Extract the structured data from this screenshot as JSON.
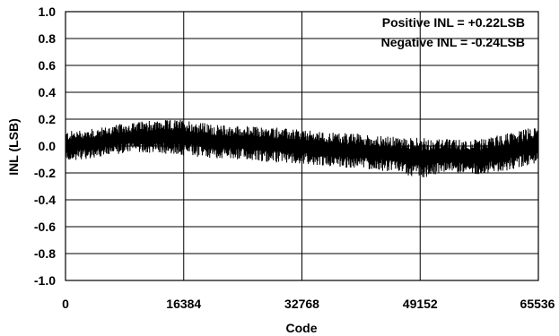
{
  "chart_data": {
    "type": "line",
    "xlabel": "Code",
    "ylabel": "INL (LSB)",
    "xlim": [
      0,
      65536
    ],
    "ylim": [
      -1.0,
      1.0
    ],
    "x_ticks": [
      0,
      16384,
      32768,
      49152,
      65536
    ],
    "x_tick_labels": [
      "0",
      "16384",
      "32768",
      "49152",
      "65536"
    ],
    "y_ticks": [
      1.0,
      0.8,
      0.6,
      0.4,
      0.2,
      0.0,
      -0.2,
      -0.4,
      -0.6,
      -0.8,
      -1.0
    ],
    "y_tick_labels": [
      "1.0",
      "0.8",
      "0.6",
      "0.4",
      "0.2",
      "0.0",
      "-0.2",
      "-0.4",
      "-0.6",
      "-0.8",
      "-1.0"
    ],
    "grid": true,
    "annotations": [
      "Positive INL = +0.22LSB",
      "Negative INL = -0.24LSB"
    ],
    "annotation_placement": "top-right",
    "series": [
      {
        "color": "#000000",
        "max": 0.22,
        "min": -0.24,
        "envelope": {
          "x": [
            0,
            4096,
            8192,
            12288,
            16384,
            20480,
            24576,
            28672,
            32768,
            36864,
            40960,
            45056,
            49152,
            53248,
            57344,
            61440,
            65536
          ],
          "upper": [
            0.11,
            0.13,
            0.17,
            0.19,
            0.2,
            0.16,
            0.15,
            0.14,
            0.12,
            0.1,
            0.09,
            0.07,
            0.06,
            0.05,
            0.05,
            0.1,
            0.15
          ],
          "lower": [
            -0.11,
            -0.09,
            -0.05,
            -0.05,
            -0.07,
            -0.09,
            -0.1,
            -0.12,
            -0.13,
            -0.15,
            -0.17,
            -0.19,
            -0.24,
            -0.19,
            -0.21,
            -0.18,
            -0.12
          ]
        }
      }
    ]
  }
}
